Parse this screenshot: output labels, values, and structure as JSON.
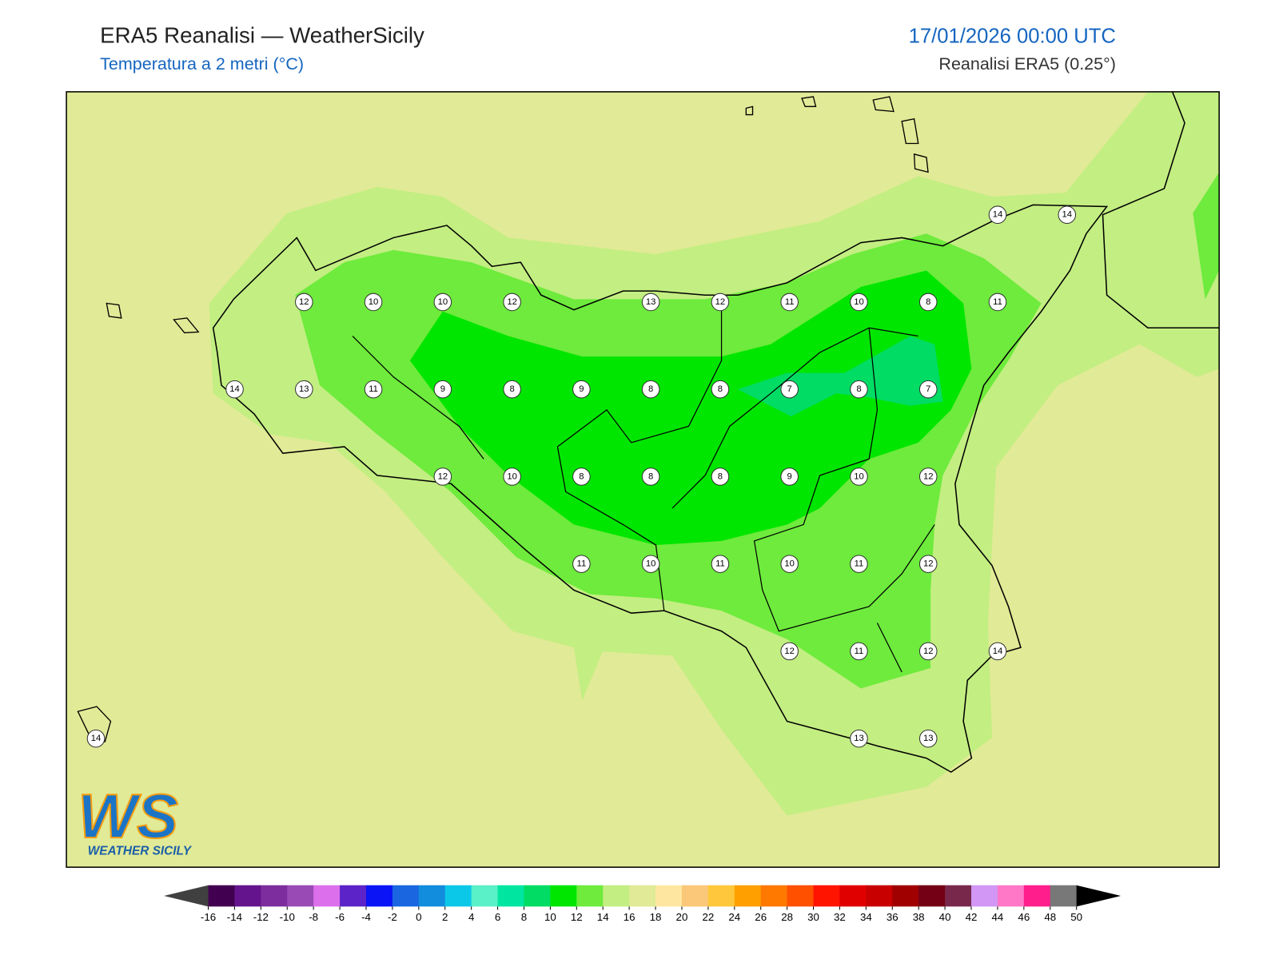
{
  "header": {
    "title": "ERA5 Reanalisi — WeatherSicily",
    "subtitle": "Temperatura a 2 metri (°C)",
    "datetime": "17/01/2026 00:00 UTC",
    "source": "Reanalisi ERA5 (0.25°)"
  },
  "stations": {
    "rows": [
      [
        null,
        null,
        null,
        null,
        null,
        null,
        null,
        null,
        null,
        null,
        null,
        null,
        null,
        14,
        14
      ],
      [
        null,
        null,
        null,
        12,
        10,
        10,
        12,
        null,
        13,
        12,
        11,
        10,
        8,
        11,
        null
      ],
      [
        null,
        null,
        14,
        13,
        11,
        9,
        8,
        9,
        8,
        8,
        7,
        8,
        7,
        null,
        null
      ],
      [
        null,
        null,
        null,
        null,
        null,
        12,
        10,
        8,
        8,
        8,
        9,
        10,
        12,
        null,
        null
      ],
      [
        null,
        null,
        null,
        null,
        null,
        null,
        null,
        11,
        10,
        11,
        10,
        11,
        12,
        null,
        null
      ],
      [
        null,
        null,
        null,
        null,
        null,
        null,
        null,
        null,
        null,
        null,
        12,
        11,
        12,
        14,
        null
      ],
      [
        14,
        null,
        null,
        null,
        null,
        null,
        null,
        null,
        null,
        null,
        null,
        13,
        13,
        null,
        null
      ]
    ]
  },
  "colorbar": {
    "ticks": [
      -16,
      -14,
      -12,
      -10,
      -8,
      -6,
      -4,
      -2,
      0,
      2,
      4,
      6,
      8,
      10,
      12,
      14,
      16,
      18,
      20,
      22,
      24,
      26,
      28,
      30,
      32,
      34,
      36,
      38,
      40,
      42,
      44,
      46,
      48,
      50
    ],
    "colors": [
      "#420050",
      "#64148c",
      "#7d2d9e",
      "#9a4ab5",
      "#dc70ec",
      "#5b23c8",
      "#0a14f5",
      "#1a66e0",
      "#128cdc",
      "#0cc8e8",
      "#5af0c8",
      "#00e6a0",
      "#00dc64",
      "#00e600",
      "#6eeb3c",
      "#c3ee82",
      "#e1ea96",
      "#ffe6a0",
      "#fac878",
      "#ffc83c",
      "#ffa000",
      "#ff7800",
      "#ff5000",
      "#ff1400",
      "#e10000",
      "#c80000",
      "#a00000",
      "#730014",
      "#78284b",
      "#d296f5",
      "#ff78c8",
      "#ff1e8c",
      "#787878",
      "#3c3c3c"
    ],
    "under_color": "#404040",
    "over_color": "#000000"
  },
  "logo": {
    "mark": "WS",
    "text": "WEATHER SICILY"
  }
}
